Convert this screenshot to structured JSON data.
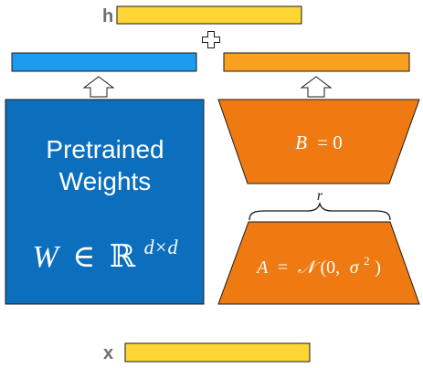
{
  "diagram": {
    "output_label": "h",
    "input_label": "x",
    "plus_symbol": "+",
    "pretrained": {
      "title_line1": "Pretrained",
      "title_line2": "Weights",
      "formula_var": "W",
      "formula_in": "∈",
      "formula_set": "ℝ",
      "formula_exp": "d×d"
    },
    "matrix_b": {
      "var": "B",
      "eq": " = 0"
    },
    "matrix_a": {
      "var": "A",
      "eq": " = ",
      "dist": "𝒩",
      "args_open": "(0, ",
      "sigma": "σ",
      "sigma_exp": "2",
      "args_close": ")"
    },
    "rank_label": "r"
  },
  "colors": {
    "yellow": "#FDD534",
    "blue_bar": "#1D9BF0",
    "pretrained_blue": "#0B6FBE",
    "orange": "#F07A12",
    "orange_bar": "#F9A11E",
    "outline": "#1a1a1a",
    "label_gray": "#6e6e6e"
  }
}
